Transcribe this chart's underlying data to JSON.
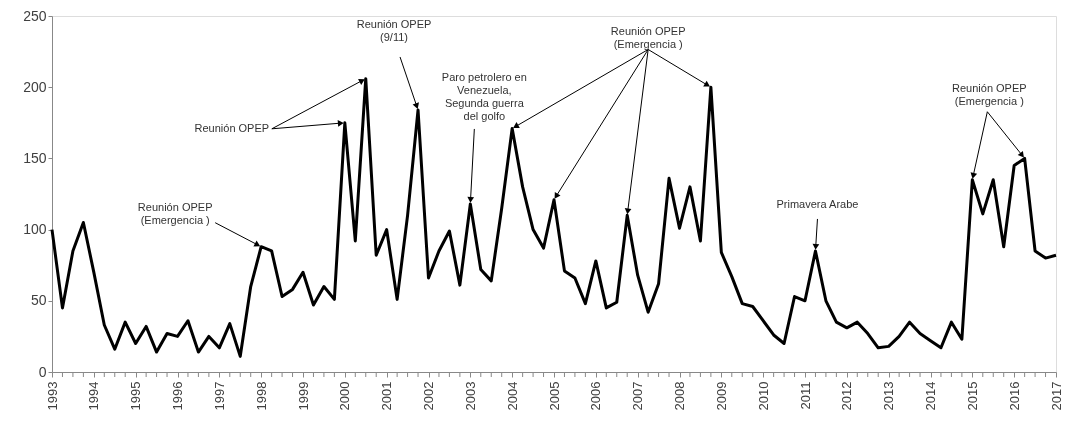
{
  "chart_data": {
    "type": "line",
    "x": [
      1993,
      1993.25,
      1993.5,
      1993.75,
      1994,
      1994.25,
      1994.5,
      1994.75,
      1995,
      1995.25,
      1995.5,
      1995.75,
      1996,
      1996.25,
      1996.5,
      1996.75,
      1997,
      1997.25,
      1997.5,
      1997.75,
      1998,
      1998.25,
      1998.5,
      1998.75,
      1999,
      1999.25,
      1999.5,
      1999.75,
      2000,
      2000.25,
      2000.5,
      2000.75,
      2001,
      2001.25,
      2001.5,
      2001.75,
      2002,
      2002.25,
      2002.5,
      2002.75,
      2003,
      2003.25,
      2003.5,
      2003.75,
      2004,
      2004.25,
      2004.5,
      2004.75,
      2005,
      2005.25,
      2005.5,
      2005.75,
      2006,
      2006.25,
      2006.5,
      2006.75,
      2007,
      2007.25,
      2007.5,
      2007.75,
      2008,
      2008.25,
      2008.5,
      2008.75,
      2009,
      2009.25,
      2009.5,
      2009.75,
      2010,
      2010.25,
      2010.5,
      2010.75,
      2011,
      2011.25,
      2011.5,
      2011.75,
      2012,
      2012.25,
      2012.5,
      2012.75,
      2013,
      2013.25,
      2013.5,
      2013.75,
      2014,
      2014.25,
      2014.5,
      2014.75,
      2015,
      2015.25,
      2015.5,
      2015.75,
      2016,
      2016.25,
      2016.5,
      2016.75,
      2017
    ],
    "series": [
      {
        "color": "#000000",
        "values": [
          100,
          45,
          85,
          105,
          70,
          33,
          16,
          35,
          20,
          32,
          14,
          27,
          25,
          36,
          14,
          25,
          17,
          34,
          11,
          60,
          88,
          85,
          53,
          58,
          70,
          47,
          60,
          51,
          175,
          92,
          206,
          82,
          100,
          51,
          110,
          184,
          66,
          85,
          99,
          61,
          118,
          72,
          64,
          115,
          171,
          130,
          100,
          87,
          121,
          71,
          66,
          48,
          78,
          45,
          49,
          110,
          68,
          42,
          62,
          136,
          101,
          130,
          92,
          200,
          84,
          67,
          48,
          46,
          36,
          26,
          20,
          53,
          50,
          85,
          50,
          35,
          31,
          35,
          27,
          17,
          18,
          25,
          35,
          27,
          22,
          17,
          35,
          23,
          135,
          111,
          135,
          88,
          145,
          150,
          85,
          80,
          82
        ]
      }
    ],
    "xlim": [
      1993,
      2017
    ],
    "ylim": [
      0,
      250
    ],
    "yticks": [
      0,
      50,
      100,
      150,
      200,
      250
    ],
    "xticks": [
      1993,
      {
        "value": 1993.25,
        "label": null
      },
      {
        "value": 1993.5,
        "label": null
      },
      {
        "value": 1993.75,
        "label": null
      },
      1994,
      {
        "value": 1994.25,
        "label": null
      },
      {
        "value": 1994.5,
        "label": null
      },
      {
        "value": 1994.75,
        "label": null
      },
      1995,
      {
        "value": 1995.25,
        "label": null
      },
      {
        "value": 1995.5,
        "label": null
      },
      {
        "value": 1995.75,
        "label": null
      },
      1996,
      {
        "value": 1996.25,
        "label": null
      },
      {
        "value": 1996.5,
        "label": null
      },
      {
        "value": 1996.75,
        "label": null
      },
      1997,
      {
        "value": 1997.25,
        "label": null
      },
      {
        "value": 1997.5,
        "label": null
      },
      {
        "value": 1997.75,
        "label": null
      },
      1998,
      {
        "value": 1998.25,
        "label": null
      },
      {
        "value": 1998.5,
        "label": null
      },
      {
        "value": 1998.75,
        "label": null
      },
      1999,
      {
        "value": 1999.25,
        "label": null
      },
      {
        "value": 1999.5,
        "label": null
      },
      {
        "value": 1999.75,
        "label": null
      },
      2000,
      {
        "value": 2000.25,
        "label": null
      },
      {
        "value": 2000.5,
        "label": null
      },
      {
        "value": 2000.75,
        "label": null
      },
      2001,
      {
        "value": 2001.25,
        "label": null
      },
      {
        "value": 2001.5,
        "label": null
      },
      {
        "value": 2001.75,
        "label": null
      },
      2002,
      {
        "value": 2002.25,
        "label": null
      },
      {
        "value": 2002.5,
        "label": null
      },
      {
        "value": 2002.75,
        "label": null
      },
      2003,
      {
        "value": 2003.25,
        "label": null
      },
      {
        "value": 2003.5,
        "label": null
      },
      {
        "value": 2003.75,
        "label": null
      },
      2004,
      {
        "value": 2004.25,
        "label": null
      },
      {
        "value": 2004.5,
        "label": null
      },
      {
        "value": 2004.75,
        "label": null
      },
      2005,
      {
        "value": 2005.25,
        "label": null
      },
      {
        "value": 2005.5,
        "label": null
      },
      {
        "value": 2005.75,
        "label": null
      },
      2006,
      {
        "value": 2006.25,
        "label": null
      },
      {
        "value": 2006.5,
        "label": null
      },
      {
        "value": 2006.75,
        "label": null
      },
      2007,
      {
        "value": 2007.25,
        "label": null
      },
      {
        "value": 2007.5,
        "label": null
      },
      {
        "value": 2007.75,
        "label": null
      },
      2008,
      {
        "value": 2008.25,
        "label": null
      },
      {
        "value": 2008.5,
        "label": null
      },
      {
        "value": 2008.75,
        "label": null
      },
      2009,
      {
        "value": 2009.25,
        "label": null
      },
      {
        "value": 2009.5,
        "label": null
      },
      {
        "value": 2009.75,
        "label": null
      },
      2010,
      {
        "value": 2010.25,
        "label": null
      },
      {
        "value": 2010.5,
        "label": null
      },
      {
        "value": 2010.75,
        "label": null
      },
      2011,
      {
        "value": 2011.25,
        "label": null
      },
      {
        "value": 2011.5,
        "label": null
      },
      {
        "value": 2011.75,
        "label": null
      },
      2012,
      {
        "value": 2012.25,
        "label": null
      },
      {
        "value": 2012.5,
        "label": null
      },
      {
        "value": 2012.75,
        "label": null
      },
      2013,
      {
        "value": 2013.25,
        "label": null
      },
      {
        "value": 2013.5,
        "label": null
      },
      {
        "value": 2013.75,
        "label": null
      },
      2014,
      {
        "value": 2014.25,
        "label": null
      },
      {
        "value": 2014.5,
        "label": null
      },
      {
        "value": 2014.75,
        "label": null
      },
      2015,
      {
        "value": 2015.25,
        "label": null
      },
      {
        "value": 2015.5,
        "label": null
      },
      {
        "value": 2015.75,
        "label": null
      },
      2016,
      {
        "value": 2016.25,
        "label": null
      },
      {
        "value": 2016.5,
        "label": null
      },
      {
        "value": 2016.75,
        "label": null
      },
      2017
    ],
    "grid": false,
    "legend": false,
    "marker": "none",
    "line_style": "solid",
    "annotations": [
      {
        "text": "Reunión OPEP\n(Emergencia )",
        "x": 1998,
        "y": 88
      },
      {
        "text": "Reunión OPEP",
        "x": 2000,
        "y": 175
      },
      {
        "text": "Reunión OPEP\n(9/11)",
        "x": 2001.75,
        "y": 184
      },
      {
        "text": "Paro petrolero en\nVenezuela,\nSegunda guerra\ndel golfo",
        "x": 2003,
        "y": 118
      },
      {
        "text": "Reunión OPEP\n(Emergencia )",
        "x": 2004,
        "y": 171
      },
      {
        "text": "Primavera Arabe",
        "x": 2011.25,
        "y": 85
      },
      {
        "text": "Reunión OPEP\n(Emergencia )",
        "x": 2015,
        "y": 135
      }
    ]
  }
}
